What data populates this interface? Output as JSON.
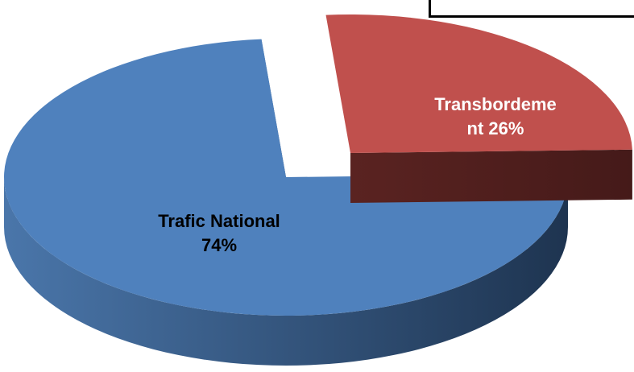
{
  "chart_data": {
    "type": "pie",
    "categories": [
      "Trafic National",
      "Transbordement"
    ],
    "values": [
      74,
      26
    ],
    "value_labels": [
      "74%",
      "26%"
    ],
    "colors": [
      "#4f81bd",
      "#c0504d"
    ]
  }
}
